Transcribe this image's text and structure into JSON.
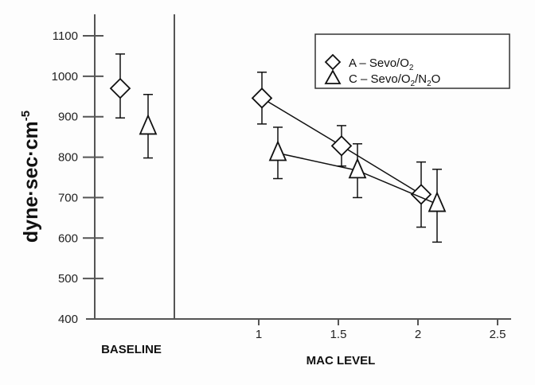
{
  "chart_data": {
    "type": "scatter",
    "title": "",
    "ylabel": "dyne·sec·cm",
    "ylabel_sup": "-5",
    "ylim": [
      400,
      1100
    ],
    "yticks": [
      "400",
      "500",
      "600",
      "700",
      "800",
      "900",
      "1000",
      "1100"
    ],
    "xlabel": "MAC LEVEL",
    "baseline_label": "BASELINE",
    "xlim": [
      0.5,
      2.5
    ],
    "xticks": [
      "1",
      "1.5",
      "2",
      "2.5"
    ],
    "legend_position": "top-right",
    "series": [
      {
        "name": "A – Sevo/O2",
        "legend_parts": [
          "A – Sevo/O",
          "2",
          ""
        ],
        "marker": "diamond",
        "baseline": {
          "value": 970,
          "err_low": 897,
          "err_high": 1055
        },
        "points": [
          {
            "x": 1.0,
            "y": 946,
            "err_low": 882,
            "err_high": 1010
          },
          {
            "x": 1.5,
            "y": 828,
            "err_low": 778,
            "err_high": 878
          },
          {
            "x": 2.0,
            "y": 708,
            "err_low": 627,
            "err_high": 788
          }
        ]
      },
      {
        "name": "C – Sevo/O2/N2O",
        "legend_parts": [
          "C – Sevo/O",
          "2",
          "/N",
          "2",
          "O"
        ],
        "marker": "triangle",
        "baseline": {
          "value": 875,
          "err_low": 798,
          "err_high": 955
        },
        "points": [
          {
            "x": 1.0,
            "y": 810,
            "err_low": 747,
            "err_high": 874
          },
          {
            "x": 1.5,
            "y": 767,
            "err_low": 700,
            "err_high": 833
          },
          {
            "x": 2.0,
            "y": 684,
            "err_low": 590,
            "err_high": 770
          }
        ]
      }
    ]
  }
}
